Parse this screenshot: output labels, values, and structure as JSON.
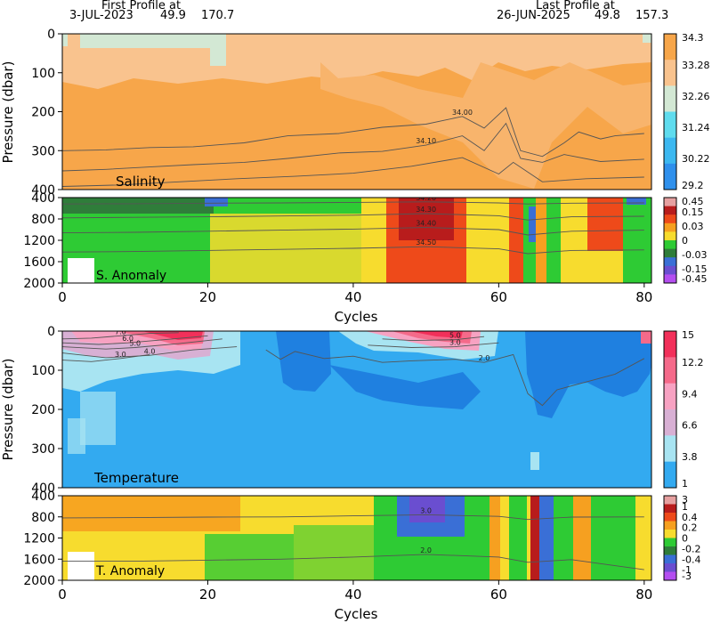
{
  "header": {
    "first_label": "First Profile at",
    "first_date": "3-JUL-2023",
    "first_lat": "49.9",
    "first_lon": "170.7",
    "last_label": "Last Profile at",
    "last_date": "26-JUN-2025",
    "last_lat": "49.8",
    "last_lon": "157.3"
  },
  "chart_data": [
    {
      "type": "heatmap",
      "panel": "salinity",
      "title": "Salinity",
      "ylabel": "Pressure (dbar)",
      "xlim": [
        0,
        81
      ],
      "ylim": [
        400,
        0
      ],
      "yticks": [
        0,
        100,
        200,
        300,
        400
      ],
      "colorbar": {
        "labels": [
          "34.3",
          "33.28",
          "32.26",
          "31.24",
          "30.22",
          "29.2"
        ],
        "colors": [
          "#f7a64a",
          "#f9c38e",
          "#d3e8d4",
          "#5fdcee",
          "#3cb8f0",
          "#2f90ec"
        ]
      },
      "contours": [
        {
          "label": "34.00",
          "points": [
            [
              0,
              300
            ],
            [
              6,
              298
            ],
            [
              12,
              292
            ],
            [
              18,
              290
            ],
            [
              25,
              280
            ],
            [
              31,
              262
            ],
            [
              38,
              256
            ],
            [
              44,
              240
            ],
            [
              50,
              232
            ],
            [
              55,
              212
            ],
            [
              58,
              242
            ],
            [
              61,
              190
            ],
            [
              63,
              300
            ],
            [
              66,
              315
            ],
            [
              69,
              280
            ],
            [
              71,
              252
            ],
            [
              74,
              270
            ],
            [
              76,
              262
            ],
            [
              80,
              256
            ]
          ]
        },
        {
          "label": "34.10",
          "points": [
            [
              0,
              352
            ],
            [
              6,
              348
            ],
            [
              12,
              342
            ],
            [
              18,
              336
            ],
            [
              25,
              330
            ],
            [
              31,
              320
            ],
            [
              38,
              306
            ],
            [
              44,
              302
            ],
            [
              50,
              286
            ],
            [
              55,
              262
            ],
            [
              58,
              300
            ],
            [
              61,
              230
            ],
            [
              63,
              320
            ],
            [
              66,
              330
            ],
            [
              69,
              310
            ],
            [
              74,
              328
            ],
            [
              80,
              322
            ]
          ]
        },
        {
          "label": "",
          "points": [
            [
              0,
              392
            ],
            [
              8,
              388
            ],
            [
              16,
              380
            ],
            [
              24,
              372
            ],
            [
              32,
              366
            ],
            [
              40,
              358
            ],
            [
              48,
              340
            ],
            [
              55,
              318
            ],
            [
              60,
              360
            ],
            [
              62,
              330
            ],
            [
              66,
              380
            ],
            [
              72,
              372
            ],
            [
              80,
              368
            ]
          ]
        }
      ]
    },
    {
      "type": "heatmap",
      "panel": "salinity_anomaly",
      "title": "S. Anomaly",
      "ylim": [
        2000,
        400
      ],
      "yticks": [
        400,
        800,
        1200,
        1600,
        2000
      ],
      "colorbar": {
        "labels": [
          "0.45",
          "0.15",
          "0.03",
          "0",
          "-0.03",
          "-0.15",
          "-0.45"
        ],
        "colors": [
          "#e6a0a0",
          "#b81c1c",
          "#ee4a1a",
          "#f6a020",
          "#f7dc2e",
          "#2ecb34",
          "#2f7d3a",
          "#3a6fd6",
          "#6a4ed0",
          "#b44ef0"
        ]
      },
      "contours": [
        {
          "label": "34.20",
          "points": [
            [
              0,
              520
            ],
            [
              10,
              515
            ],
            [
              20,
              505
            ],
            [
              30,
              500
            ],
            [
              40,
              490
            ],
            [
              50,
              480
            ],
            [
              60,
              500
            ],
            [
              64,
              520
            ],
            [
              70,
              505
            ],
            [
              80,
              500
            ]
          ]
        },
        {
          "label": "34.30",
          "points": [
            [
              0,
              780
            ],
            [
              10,
              770
            ],
            [
              20,
              760
            ],
            [
              30,
              745
            ],
            [
              40,
              730
            ],
            [
              50,
              700
            ],
            [
              60,
              740
            ],
            [
              64,
              820
            ],
            [
              70,
              760
            ],
            [
              80,
              750
            ]
          ]
        },
        {
          "label": "34.40",
          "points": [
            [
              0,
              1060
            ],
            [
              10,
              1050
            ],
            [
              20,
              1030
            ],
            [
              30,
              1010
            ],
            [
              40,
              990
            ],
            [
              50,
              960
            ],
            [
              60,
              1000
            ],
            [
              64,
              1100
            ],
            [
              70,
              1030
            ],
            [
              80,
              1010
            ]
          ]
        },
        {
          "label": "34.50",
          "points": [
            [
              0,
              1420
            ],
            [
              10,
              1410
            ],
            [
              20,
              1390
            ],
            [
              30,
              1370
            ],
            [
              40,
              1350
            ],
            [
              50,
              1320
            ],
            [
              60,
              1360
            ],
            [
              64,
              1450
            ],
            [
              70,
              1390
            ],
            [
              80,
              1380
            ]
          ]
        }
      ]
    },
    {
      "type": "heatmap",
      "panel": "temperature",
      "title": "Temperature",
      "ylabel": "Pressure (dbar)",
      "xlim": [
        0,
        81
      ],
      "ylim": [
        400,
        0
      ],
      "yticks": [
        0,
        100,
        200,
        300,
        400
      ],
      "colorbar": {
        "labels": [
          "15",
          "12.2",
          "9.4",
          "6.6",
          "3.8",
          "1"
        ],
        "colors": [
          "#f2305a",
          "#f56a8a",
          "#f7a2c2",
          "#d8b0d4",
          "#a8e4f2",
          "#33aaf0"
        ]
      },
      "contours": [
        {
          "label": "7.0",
          "points": [
            [
              0,
              20
            ],
            [
              4,
              18
            ],
            [
              8,
              12
            ],
            [
              12,
              6
            ],
            [
              16,
              4
            ]
          ]
        },
        {
          "label": "6.0",
          "points": [
            [
              0,
              30
            ],
            [
              5,
              34
            ],
            [
              9,
              30
            ],
            [
              14,
              22
            ],
            [
              20,
              12
            ]
          ]
        },
        {
          "label": "5.0",
          "points": [
            [
              0,
              40
            ],
            [
              6,
              46
            ],
            [
              10,
              42
            ],
            [
              16,
              32
            ],
            [
              22,
              20
            ]
          ]
        },
        {
          "label": "4.0",
          "points": [
            [
              0,
              56
            ],
            [
              6,
              68
            ],
            [
              12,
              62
            ],
            [
              18,
              48
            ],
            [
              24,
              40
            ]
          ]
        },
        {
          "label": "3.0",
          "points": [
            [
              0,
              74
            ],
            [
              4,
              78
            ],
            [
              8,
              70
            ],
            [
              12,
              60
            ]
          ]
        },
        {
          "label": "5.0",
          "points": [
            [
              44,
              20
            ],
            [
              48,
              24
            ],
            [
              54,
              22
            ],
            [
              58,
              14
            ]
          ]
        },
        {
          "label": "3.0",
          "points": [
            [
              42,
              36
            ],
            [
              48,
              42
            ],
            [
              54,
              40
            ],
            [
              60,
              30
            ]
          ]
        },
        {
          "label": "2.0",
          "points": [
            [
              28,
              48
            ],
            [
              30,
              72
            ],
            [
              32,
              52
            ],
            [
              36,
              70
            ],
            [
              40,
              64
            ],
            [
              44,
              80
            ],
            [
              48,
              76
            ],
            [
              54,
              72
            ],
            [
              58,
              80
            ],
            [
              62,
              60
            ],
            [
              64,
              160
            ],
            [
              66,
              190
            ],
            [
              68,
              150
            ],
            [
              72,
              130
            ],
            [
              76,
              110
            ],
            [
              80,
              70
            ]
          ]
        }
      ]
    },
    {
      "type": "heatmap",
      "panel": "temperature_anomaly",
      "title": "T. Anomaly",
      "xlabel": "Cycles",
      "xlim": [
        0,
        81
      ],
      "ylim": [
        2000,
        400
      ],
      "yticks": [
        400,
        800,
        1200,
        1600,
        2000
      ],
      "xticks": [
        0,
        20,
        40,
        60,
        80
      ],
      "colorbar": {
        "labels": [
          "3",
          "1",
          "0.4",
          "0.2",
          "0",
          "-0.2",
          "-0.4",
          "-1",
          "-3"
        ],
        "colors": [
          "#e6a0a0",
          "#b81c1c",
          "#ee4a1a",
          "#f6a020",
          "#f7dc2e",
          "#2ecb34",
          "#2f7d3a",
          "#3a6fd6",
          "#6a4ed0",
          "#b44ef0"
        ]
      },
      "contours": [
        {
          "label": "3.0",
          "points": [
            [
              0,
              820
            ],
            [
              10,
              815
            ],
            [
              20,
              805
            ],
            [
              30,
              800
            ],
            [
              40,
              780
            ],
            [
              50,
              760
            ],
            [
              60,
              790
            ],
            [
              64,
              850
            ],
            [
              70,
              805
            ],
            [
              80,
              800
            ]
          ]
        },
        {
          "label": "2.0",
          "points": [
            [
              0,
              1640
            ],
            [
              10,
              1640
            ],
            [
              20,
              1620
            ],
            [
              30,
              1600
            ],
            [
              40,
              1560
            ],
            [
              50,
              1510
            ],
            [
              60,
              1560
            ],
            [
              64,
              1660
            ],
            [
              70,
              1610
            ],
            [
              80,
              1800
            ]
          ]
        }
      ]
    }
  ]
}
